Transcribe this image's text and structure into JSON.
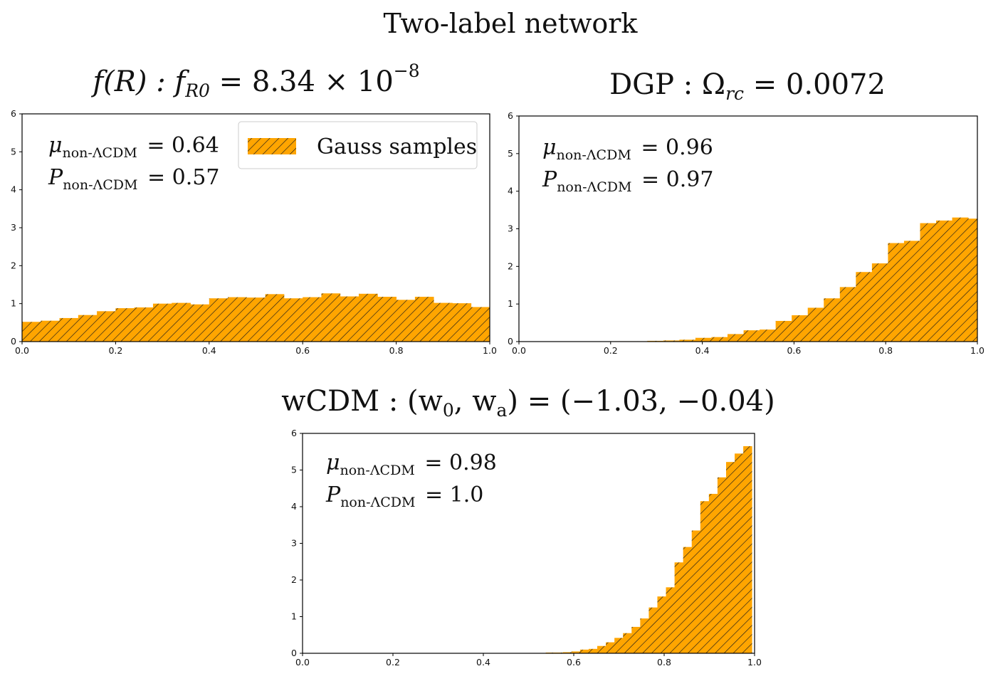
{
  "figure_title": "Two-label network",
  "colors": {
    "bar_fill": "#FFA500",
    "hatch": "#1a1a1a",
    "axis": "#000000"
  },
  "legend": {
    "label": "Gauss samples",
    "placement": "top-right"
  },
  "chart_data": [
    {
      "type": "bar",
      "title_main": "f(R) : f",
      "title_sub": "R0",
      "title_rest": " = 8.34 × 10",
      "title_sup": "−8",
      "annotation": {
        "mu_symbol": "μ",
        "mu_sub": "non-ΛCDM",
        "mu_value": "= 0.64",
        "p_symbol": "P",
        "p_sub": "non-ΛCDM",
        "p_value": "= 0.57"
      },
      "xlim": [
        0,
        1
      ],
      "ylim": [
        0,
        6
      ],
      "xticks": [
        "0.0",
        "0.2",
        "0.4",
        "0.6",
        "0.8",
        "1.0"
      ],
      "yticks": [
        "0",
        "1",
        "2",
        "3",
        "4",
        "5",
        "6"
      ],
      "bin_edges_start": 0.0,
      "bin_width": 0.04,
      "show_legend": true,
      "values": [
        0.52,
        0.55,
        0.62,
        0.7,
        0.8,
        0.88,
        0.9,
        1.0,
        1.02,
        0.98,
        1.14,
        1.17,
        1.16,
        1.25,
        1.14,
        1.17,
        1.27,
        1.19,
        1.26,
        1.18,
        1.1,
        1.18,
        1.02,
        1.01,
        0.91
      ]
    },
    {
      "type": "bar",
      "title_main": "DGP : Ω",
      "title_sub": "rc",
      "title_rest": " = 0.0072",
      "title_sup": "",
      "annotation": {
        "mu_symbol": "μ",
        "mu_sub": "non-ΛCDM",
        "mu_value": "= 0.96",
        "p_symbol": "P",
        "p_sub": "non-ΛCDM",
        "p_value": "= 0.97"
      },
      "xlim": [
        0,
        1
      ],
      "ylim": [
        0,
        6
      ],
      "xticks": [
        "0.0",
        "0.2",
        "0.4",
        "0.6",
        "0.8",
        "1.0"
      ],
      "yticks": [
        "0",
        "1",
        "2",
        "3",
        "4",
        "5",
        "6"
      ],
      "bin_edges_start": 0.0,
      "bin_width": 0.035,
      "show_legend": false,
      "values": [
        0,
        0,
        0,
        0,
        0,
        0,
        0.01,
        0.01,
        0.02,
        0.03,
        0.05,
        0.1,
        0.12,
        0.2,
        0.3,
        0.32,
        0.55,
        0.7,
        0.9,
        1.15,
        1.45,
        1.85,
        2.08,
        2.62,
        2.68,
        3.15,
        3.22,
        3.3,
        3.27
      ]
    },
    {
      "type": "bar",
      "title_main": "wCDM : (w",
      "title_sub": "0",
      "title_rest": ", w",
      "title_sub2": "a",
      "title_end": ") = (−1.03, −0.04)",
      "annotation": {
        "mu_symbol": "μ",
        "mu_sub": "non-ΛCDM",
        "mu_value": "= 0.98",
        "p_symbol": "P",
        "p_sub": "non-ΛCDM",
        "p_value": "= 1.0"
      },
      "xlim": [
        0,
        1
      ],
      "ylim": [
        0,
        6
      ],
      "xticks": [
        "0.0",
        "0.2",
        "0.4",
        "0.6",
        "0.8",
        "1.0"
      ],
      "yticks": [
        "0",
        "1",
        "2",
        "3",
        "4",
        "5",
        "6"
      ],
      "bin_edges_start": 0.5,
      "bin_width": 0.019,
      "show_legend": false,
      "values": [
        0.01,
        0.01,
        0.02,
        0.02,
        0.03,
        0.05,
        0.1,
        0.12,
        0.2,
        0.3,
        0.42,
        0.55,
        0.72,
        0.95,
        1.25,
        1.55,
        1.8,
        2.48,
        2.9,
        3.35,
        4.15,
        4.35,
        4.8,
        5.22,
        5.45,
        5.65
      ]
    }
  ]
}
